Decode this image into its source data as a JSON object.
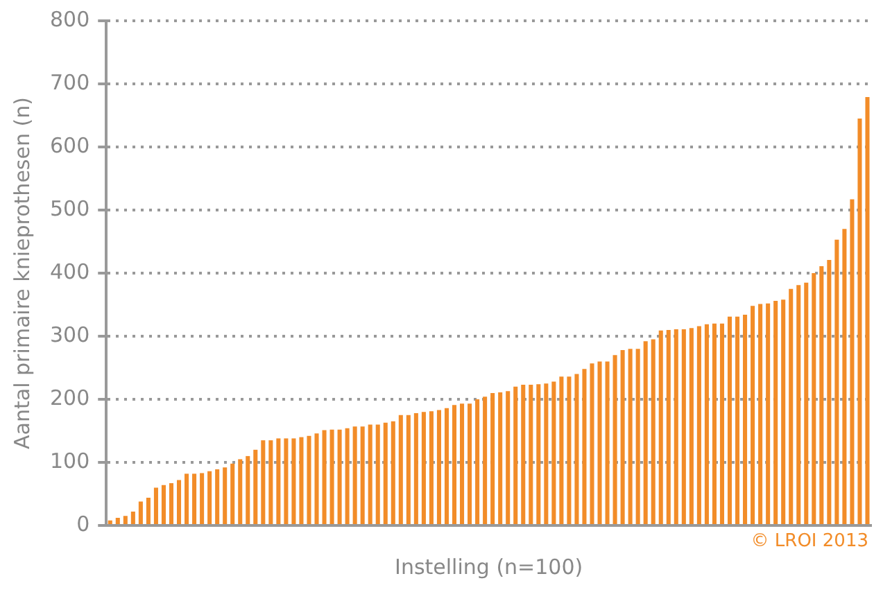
{
  "chart_data": {
    "type": "bar",
    "xlabel": "Instelling (n=100)",
    "ylabel": "Aantal primaire knieprothesen (n)",
    "categories": [
      null,
      null,
      null,
      null,
      null,
      null,
      null,
      null,
      null,
      null,
      null,
      null,
      null,
      null,
      null,
      null,
      null,
      null,
      null,
      null,
      null,
      null,
      null,
      null,
      null,
      null,
      null,
      null,
      null,
      null,
      null,
      null,
      null,
      null,
      null,
      null,
      null,
      null,
      null,
      null,
      null,
      null,
      null,
      null,
      null,
      null,
      null,
      null,
      null,
      null,
      null,
      null,
      null,
      null,
      null,
      null,
      null,
      null,
      null,
      null,
      null,
      null,
      null,
      null,
      null,
      null,
      null,
      null,
      null,
      null,
      null,
      null,
      null,
      null,
      null,
      null,
      null,
      null,
      null,
      null,
      null,
      null,
      null,
      null,
      null,
      null,
      null,
      null,
      null,
      null,
      null,
      null,
      null,
      null,
      null,
      null,
      null,
      null,
      null,
      null
    ],
    "values": [
      8,
      12,
      15,
      22,
      38,
      44,
      60,
      64,
      67,
      72,
      82,
      82,
      83,
      86,
      89,
      92,
      98,
      105,
      110,
      120,
      135,
      135,
      138,
      138,
      138,
      140,
      142,
      146,
      151,
      152,
      152,
      154,
      157,
      157,
      160,
      160,
      163,
      165,
      175,
      175,
      178,
      180,
      181,
      183,
      186,
      191,
      193,
      193,
      200,
      204,
      210,
      211,
      213,
      220,
      223,
      223,
      224,
      225,
      228,
      236,
      236,
      240,
      248,
      257,
      260,
      260,
      270,
      278,
      280,
      280,
      292,
      295,
      309,
      310,
      311,
      311,
      313,
      316,
      319,
      320,
      320,
      331,
      331,
      334,
      348,
      351,
      352,
      356,
      358,
      375,
      381,
      385,
      400,
      411,
      421,
      453,
      470,
      517,
      645,
      679
    ],
    "color": "#f28c28",
    "ylim": [
      0,
      800
    ],
    "yticks": [
      0,
      100,
      200,
      300,
      400,
      500,
      600,
      700,
      800
    ],
    "grid": "y",
    "tick_labels": "y",
    "annotations": [
      "© LROI 2013"
    ]
  }
}
